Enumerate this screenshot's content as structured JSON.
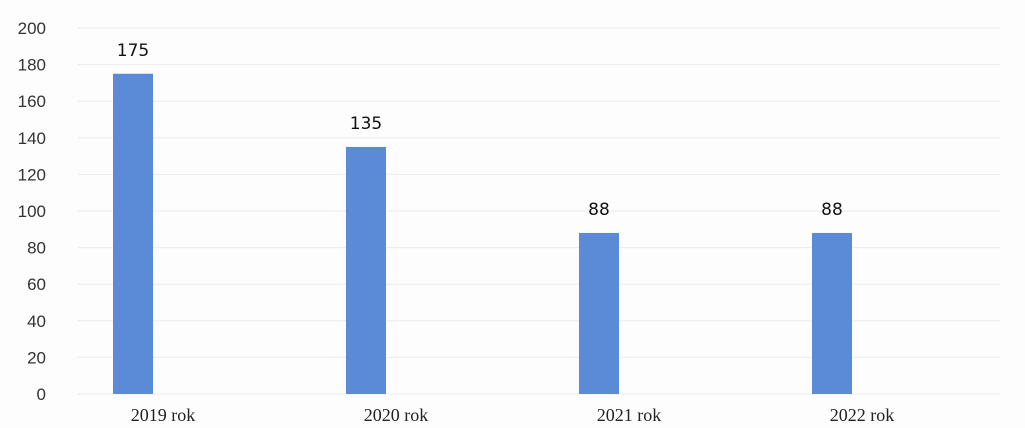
{
  "chart_data": {
    "type": "bar",
    "categories": [
      "2019 rok",
      "2020 rok",
      "2021 rok",
      "2022 rok"
    ],
    "values": [
      175,
      135,
      88,
      88
    ],
    "data_labels": [
      "175",
      "135",
      "88",
      "88"
    ],
    "y_ticks": [
      "0",
      "20",
      "40",
      "60",
      "80",
      "100",
      "120",
      "140",
      "160",
      "180",
      "200"
    ],
    "ylim": [
      0,
      200
    ],
    "title": "",
    "xlabel": "",
    "ylabel": "",
    "grid": true,
    "bar_color": "#5b8bd6"
  }
}
